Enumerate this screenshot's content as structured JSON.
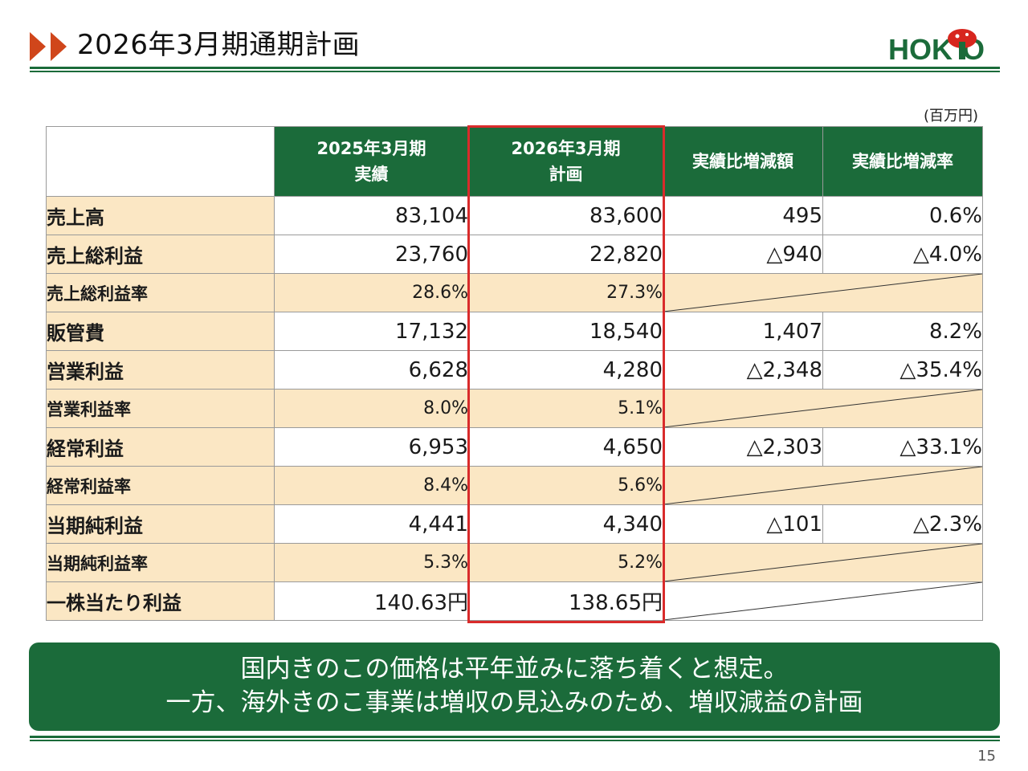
{
  "header": {
    "title": "2026年3月期通期計画",
    "logo_text": "HOKTO"
  },
  "unit_note": "(百万円)",
  "table": {
    "columns": [
      "",
      "2025年3月期\n実績",
      "2026年3月期\n計画",
      "実績比増減額",
      "実績比増減率"
    ],
    "col_headers": [
      {
        "line1": "2025年3月期",
        "line2": "実績"
      },
      {
        "line1": "2026年3月期",
        "line2": "計画"
      },
      {
        "line1": "実績比増減額",
        "line2": ""
      },
      {
        "line1": "実績比増減率",
        "line2": ""
      }
    ],
    "rows": [
      {
        "label": "売上高",
        "fy2025": "83,104",
        "fy2026": "83,600",
        "diff": "495",
        "rate": "0.6%"
      },
      {
        "label": "売上総利益",
        "fy2025": "23,760",
        "fy2026": "22,820",
        "diff": "△940",
        "rate": "△4.0%"
      },
      {
        "label": "売上総利益率",
        "fy2025": "28.6%",
        "fy2026": "27.3%",
        "sub": true
      },
      {
        "label": "販管費",
        "fy2025": "17,132",
        "fy2026": "18,540",
        "diff": "1,407",
        "rate": "8.2%"
      },
      {
        "label": "営業利益",
        "fy2025": "6,628",
        "fy2026": "4,280",
        "diff": "△2,348",
        "rate": "△35.4%"
      },
      {
        "label": "営業利益率",
        "fy2025": "8.0%",
        "fy2026": "5.1%",
        "sub": true
      },
      {
        "label": "経常利益",
        "fy2025": "6,953",
        "fy2026": "4,650",
        "diff": "△2,303",
        "rate": "△33.1%"
      },
      {
        "label": "経常利益率",
        "fy2025": "8.4%",
        "fy2026": "5.6%",
        "sub": true
      },
      {
        "label": "当期純利益",
        "fy2025": "4,441",
        "fy2026": "4,340",
        "diff": "△101",
        "rate": "△2.3%"
      },
      {
        "label": "当期純利益率",
        "fy2025": "5.3%",
        "fy2026": "5.2%",
        "sub": true
      },
      {
        "label": "一株当たり利益",
        "fy2025": "140.63円",
        "fy2026": "138.65円"
      }
    ]
  },
  "banner": {
    "line1": "国内きのこの価格は平年並みに落ち着くと想定。",
    "line2": "一方、海外きのこ事業は増収の見込みのため、増収減益の計画"
  },
  "page_number": "15",
  "colors": {
    "brand_green": "#1b6b3a",
    "label_bg": "#fbe7c4",
    "highlight_red": "#d92b2b",
    "logo_red": "#d7261e",
    "arrow_orange": "#d0461b"
  }
}
